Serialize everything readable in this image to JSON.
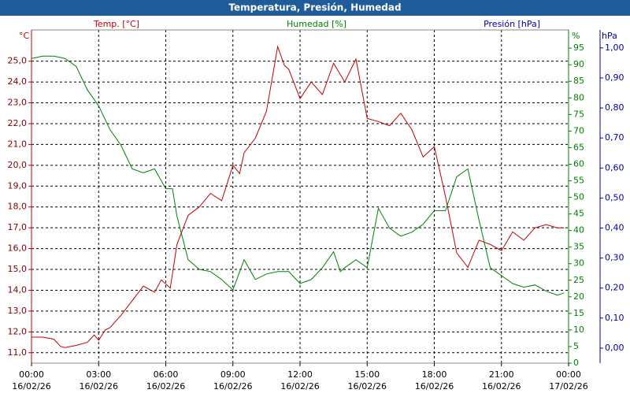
{
  "chart_data": {
    "type": "line",
    "title": "Temperatura, Presión, Humedad",
    "ylabel": "Temp. [°C]",
    "yunit": "°C",
    "ycolor": "#c00000",
    "y2label": "Humedad [%]",
    "y2unit": "%",
    "y2color": "#008000",
    "y3label": "Presión [hPa]",
    "y3unit": "hPa",
    "y3color": "#0000a0",
    "grid": true,
    "xlim": [
      0,
      24
    ],
    "xticks": [
      {
        "value": 0,
        "label": "00:00",
        "date": "16/02/26"
      },
      {
        "value": 3,
        "label": "03:00",
        "date": "16/02/26"
      },
      {
        "value": 6,
        "label": "06:00",
        "date": "16/02/26"
      },
      {
        "value": 9,
        "label": "09:00",
        "date": "16/02/26"
      },
      {
        "value": 12,
        "label": "12:00",
        "date": "16/02/26"
      },
      {
        "value": 15,
        "label": "15:00",
        "date": "16/02/26"
      },
      {
        "value": 18,
        "label": "18:00",
        "date": "16/02/26"
      },
      {
        "value": 21,
        "label": "21:00",
        "date": "16/02/26"
      },
      {
        "value": 24,
        "label": "00:00",
        "date": "17/02/26"
      }
    ],
    "ylim": [
      10.5,
      26.5
    ],
    "yticks": [
      {
        "value": 11,
        "label": "11,0"
      },
      {
        "value": 12,
        "label": "12,0"
      },
      {
        "value": 13,
        "label": "13,0"
      },
      {
        "value": 14,
        "label": "14,0"
      },
      {
        "value": 15,
        "label": "15,0"
      },
      {
        "value": 16,
        "label": "16,0"
      },
      {
        "value": 17,
        "label": "17,0"
      },
      {
        "value": 18,
        "label": "18,0"
      },
      {
        "value": 19,
        "label": "19,0"
      },
      {
        "value": 20,
        "label": "20,0"
      },
      {
        "value": 21,
        "label": "21,0"
      },
      {
        "value": 22,
        "label": "22,0"
      },
      {
        "value": 23,
        "label": "23,0"
      },
      {
        "value": 24,
        "label": "24,0"
      },
      {
        "value": 25,
        "label": "25,0"
      }
    ],
    "y2lim": [
      0,
      100.5
    ],
    "y2ticks": [
      0,
      5,
      10,
      15,
      20,
      25,
      30,
      35,
      40,
      45,
      50,
      55,
      60,
      65,
      70,
      75,
      80,
      85,
      90,
      95
    ],
    "y3lim": [
      -0.05,
      1.06
    ],
    "y3ticks": [
      {
        "value": 0,
        "label": "0,00"
      },
      {
        "value": 0.1,
        "label": "0,10"
      },
      {
        "value": 0.2,
        "label": "0,20"
      },
      {
        "value": 0.3,
        "label": "0,30"
      },
      {
        "value": 0.4,
        "label": "0,40"
      },
      {
        "value": 0.5,
        "label": "0,50"
      },
      {
        "value": 0.6,
        "label": "0,60"
      },
      {
        "value": 0.7,
        "label": "0,70"
      },
      {
        "value": 0.8,
        "label": "0,80"
      },
      {
        "value": 0.9,
        "label": "0,90"
      },
      {
        "value": 1,
        "label": "1,00"
      }
    ],
    "series": [
      {
        "name": "Temp. [°C]",
        "color": "#c00000",
        "axis": "y",
        "x": [
          0,
          0.5,
          1,
          1.3,
          1.5,
          2,
          2.5,
          2.8,
          3,
          3.3,
          3.5,
          4,
          4.5,
          5,
          5.5,
          5.8,
          6.2,
          6.5,
          7,
          7.5,
          8,
          8.5,
          9,
          9.3,
          9.5,
          10,
          10.5,
          11,
          11.3,
          11.5,
          12,
          12.5,
          13,
          13.5,
          14,
          14.5,
          15,
          15.5,
          16,
          16.5,
          17,
          17.5,
          18,
          18.5,
          19,
          19.5,
          20,
          20.5,
          21,
          21.5,
          22,
          22.5,
          23,
          23.5,
          23.8
        ],
        "values": [
          11.75,
          11.75,
          11.65,
          11.3,
          11.25,
          11.35,
          11.5,
          11.85,
          11.6,
          12.1,
          12.2,
          12.8,
          13.5,
          14.2,
          13.9,
          14.5,
          14.1,
          16.2,
          17.6,
          18.0,
          18.65,
          18.3,
          20.0,
          19.6,
          20.6,
          21.3,
          22.6,
          25.7,
          24.8,
          24.6,
          23.2,
          24.0,
          23.4,
          24.9,
          24.0,
          25.1,
          22.25,
          22.1,
          21.9,
          22.5,
          21.7,
          20.4,
          20.9,
          18.5,
          15.8,
          15.1,
          16.4,
          16.2,
          15.9,
          16.8,
          16.4,
          17.0,
          17.15,
          17.0,
          17.0
        ]
      },
      {
        "name": "Humedad [%]",
        "color": "#008000",
        "axis": "y2",
        "x": [
          0,
          0.5,
          1,
          1.5,
          2,
          2.5,
          3,
          3.5,
          4,
          4.5,
          5,
          5.5,
          6,
          6.3,
          6.5,
          7,
          7.5,
          8,
          8.5,
          9,
          9.5,
          10,
          10.5,
          11,
          11.5,
          12,
          12.5,
          13,
          13.5,
          13.8,
          14,
          14.5,
          15,
          15.5,
          16,
          16.5,
          17,
          17.5,
          18,
          18.5,
          19,
          19.5,
          20,
          20.5,
          21,
          21.5,
          22,
          22.5,
          23,
          23.5,
          23.8
        ],
        "values": [
          91.9,
          92.6,
          92.6,
          91.9,
          89.5,
          82.4,
          77.6,
          70.5,
          65.7,
          58.6,
          57.4,
          58.6,
          52.6,
          52.6,
          44.3,
          31.2,
          28.3,
          27.6,
          25.2,
          22.1,
          31.2,
          25.2,
          26.9,
          27.6,
          27.6,
          24.0,
          25.2,
          28.8,
          33.6,
          27.6,
          28.8,
          31.2,
          28.8,
          46.7,
          40.7,
          38.3,
          39.5,
          41.9,
          46.0,
          46.0,
          56.2,
          58.6,
          43.1,
          28.8,
          26.4,
          24.0,
          22.9,
          23.6,
          21.7,
          20.5,
          21.2
        ]
      }
    ]
  }
}
